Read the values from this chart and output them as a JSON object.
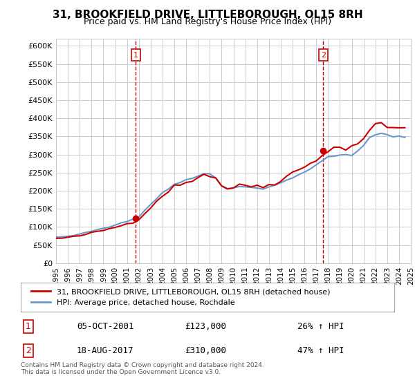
{
  "title": "31, BROOKFIELD DRIVE, LITTLEBOROUGH, OL15 8RH",
  "subtitle": "Price paid vs. HM Land Registry's House Price Index (HPI)",
  "ylabel_ticks": [
    "£0",
    "£50K",
    "£100K",
    "£150K",
    "£200K",
    "£250K",
    "£300K",
    "£350K",
    "£400K",
    "£450K",
    "£500K",
    "£550K",
    "£600K"
  ],
  "ytick_values": [
    0,
    50000,
    100000,
    150000,
    200000,
    250000,
    300000,
    350000,
    400000,
    450000,
    500000,
    550000,
    600000
  ],
  "sale1_date": 2001.75,
  "sale1_price": 123000,
  "sale2_date": 2017.6,
  "sale2_price": 310000,
  "sale1_label": "1",
  "sale2_label": "2",
  "legend_line1": "31, BROOKFIELD DRIVE, LITTLEBOROUGH, OL15 8RH (detached house)",
  "legend_line2": "HPI: Average price, detached house, Rochdale",
  "table_row1": [
    "1",
    "05-OCT-2001",
    "£123,000",
    "26% ↑ HPI"
  ],
  "table_row2": [
    "2",
    "18-AUG-2017",
    "£310,000",
    "47% ↑ HPI"
  ],
  "footnote": "Contains HM Land Registry data © Crown copyright and database right 2024.\nThis data is licensed under the Open Government Licence v3.0.",
  "line_color_red": "#cc0000",
  "line_color_blue": "#6699cc",
  "dashed_color": "#cc0000",
  "background_chart": "#ffffff",
  "background_fig": "#ffffff",
  "grid_color": "#cccccc",
  "xmin": 1995,
  "xmax": 2025
}
